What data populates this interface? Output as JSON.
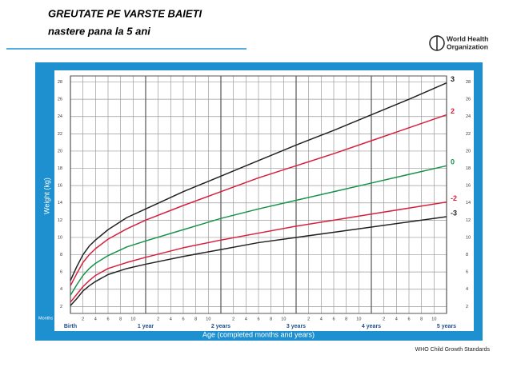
{
  "chart_data": {
    "type": "line",
    "title": "GREUTATE PE VARSTE BAIETI",
    "subtitle": "nastere pana la 5 ani",
    "logo": [
      "World Health",
      "Organization"
    ],
    "footer": "WHO Child Growth Standards",
    "x_label": "Age (completed months and years)",
    "y_label": "Weight (kg)",
    "x_unit_label": "Months",
    "x": [
      0,
      1,
      2,
      3,
      4,
      6,
      9,
      12,
      18,
      24,
      30,
      36,
      42,
      48,
      54,
      60
    ],
    "series": [
      {
        "name": "3",
        "color": "#222222",
        "values": [
          5.0,
          6.6,
          8.0,
          9.0,
          9.7,
          10.9,
          12.3,
          13.3,
          15.3,
          17.1,
          18.9,
          20.7,
          22.4,
          24.2,
          26.0,
          27.9
        ]
      },
      {
        "name": "2",
        "color": "#d6203d",
        "values": [
          4.4,
          5.8,
          7.1,
          8.0,
          8.7,
          9.8,
          11.0,
          12.0,
          13.7,
          15.3,
          16.9,
          18.3,
          19.7,
          21.2,
          22.7,
          24.2
        ]
      },
      {
        "name": "0",
        "color": "#17924a",
        "values": [
          3.3,
          4.5,
          5.6,
          6.4,
          7.0,
          7.9,
          8.9,
          9.6,
          10.9,
          12.2,
          13.3,
          14.3,
          15.3,
          16.3,
          17.3,
          18.3
        ]
      },
      {
        "name": "-2",
        "color": "#d6203d",
        "values": [
          2.5,
          3.4,
          4.3,
          5.0,
          5.6,
          6.4,
          7.1,
          7.7,
          8.8,
          9.7,
          10.5,
          11.3,
          12.0,
          12.7,
          13.4,
          14.1
        ]
      },
      {
        "name": "-3",
        "color": "#222222",
        "values": [
          2.1,
          2.9,
          3.8,
          4.4,
          4.9,
          5.7,
          6.4,
          6.9,
          7.8,
          8.6,
          9.4,
          10.0,
          10.6,
          11.2,
          11.8,
          12.4
        ]
      }
    ],
    "xlim": [
      0,
      60
    ],
    "ylim": [
      1.2,
      28.7
    ],
    "yticks": [
      2,
      4,
      6,
      8,
      10,
      12,
      14,
      16,
      18,
      20,
      22,
      24,
      26,
      28
    ],
    "xticks": [
      2,
      4,
      6,
      8,
      10,
      {
        "value": 14,
        "label": "2"
      },
      {
        "value": 16,
        "label": "4"
      },
      {
        "value": 18,
        "label": "6"
      },
      {
        "value": 20,
        "label": "8"
      },
      {
        "value": 22,
        "label": "10"
      },
      {
        "value": 26,
        "label": "2"
      },
      {
        "value": 28,
        "label": "4"
      },
      {
        "value": 30,
        "label": "6"
      },
      {
        "value": 32,
        "label": "8"
      },
      {
        "value": 34,
        "label": "10"
      },
      {
        "value": 38,
        "label": "2"
      },
      {
        "value": 40,
        "label": "4"
      },
      {
        "value": 42,
        "label": "6"
      },
      {
        "value": 44,
        "label": "8"
      },
      {
        "value": 46,
        "label": "10"
      },
      {
        "value": 50,
        "label": "2"
      },
      {
        "value": 52,
        "label": "4"
      },
      {
        "value": 54,
        "label": "6"
      },
      {
        "value": 56,
        "label": "8"
      },
      {
        "value": 58,
        "label": "10"
      }
    ],
    "xmajorticks": [
      {
        "value": 0,
        "label": "Birth"
      },
      {
        "value": 12,
        "label": "1 year"
      },
      {
        "value": 24,
        "label": "2 years"
      },
      {
        "value": 36,
        "label": "3 years"
      },
      {
        "value": 48,
        "label": "4 years"
      },
      {
        "value": 60,
        "label": "5 years"
      }
    ],
    "grid": true
  }
}
